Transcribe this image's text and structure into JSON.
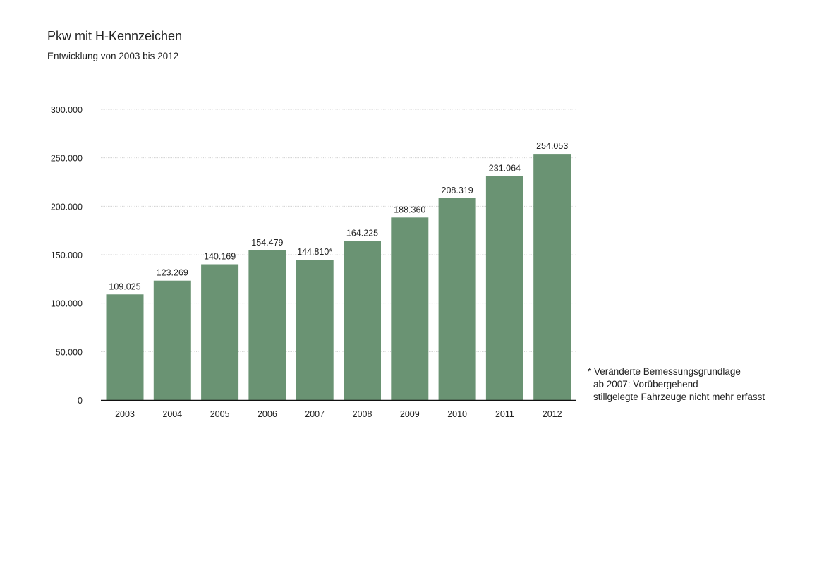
{
  "colors": {
    "bar": "#6a9373",
    "grid": "#cfcfcf",
    "axis": "#111111",
    "text": "#222222"
  },
  "chart_data": {
    "type": "bar",
    "title": "Pkw mit H-Kennzeichen",
    "subtitle": "Entwicklung von 2003 bis 2012",
    "categories": [
      "2003",
      "2004",
      "2005",
      "2006",
      "2007",
      "2008",
      "2009",
      "2010",
      "2011",
      "2012"
    ],
    "values": [
      109025,
      123269,
      140169,
      154479,
      144810,
      164225,
      188360,
      208319,
      231064,
      254053
    ],
    "value_labels": [
      "109.025",
      "123.269",
      "140.169",
      "154.479",
      "144.810*",
      "164.225",
      "188.360",
      "208.319",
      "231.064",
      "254.053"
    ],
    "xlabel": "",
    "ylabel": "",
    "ylim": [
      0,
      300000
    ],
    "yticks": [
      0,
      50000,
      100000,
      150000,
      200000,
      250000,
      300000
    ],
    "ytick_labels": [
      "0",
      "50.000",
      "100.000",
      "150.000",
      "200.000",
      "250.000",
      "300.000"
    ],
    "grid": true,
    "footnote": {
      "line1": "* Veränderte Bemessungsgrundlage",
      "line2": "ab 2007: Vorübergehend",
      "line3": "stillgelegte Fahrzeuge nicht mehr erfasst"
    }
  }
}
